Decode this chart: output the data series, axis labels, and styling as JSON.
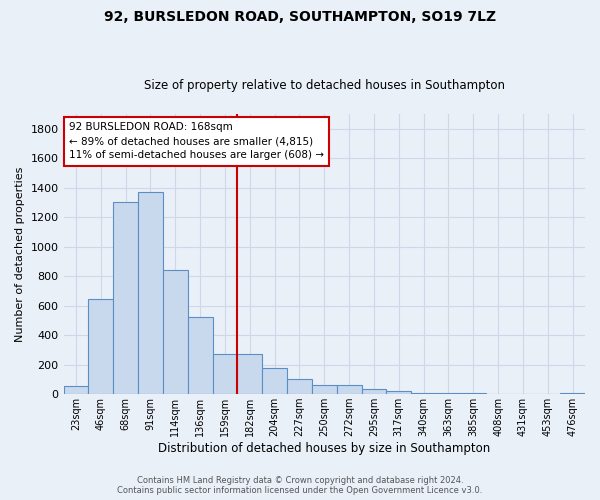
{
  "title": "92, BURSLEDON ROAD, SOUTHAMPTON, SO19 7LZ",
  "subtitle": "Size of property relative to detached houses in Southampton",
  "xlabel": "Distribution of detached houses by size in Southampton",
  "ylabel": "Number of detached properties",
  "footer_line1": "Contains HM Land Registry data © Crown copyright and database right 2024.",
  "footer_line2": "Contains public sector information licensed under the Open Government Licence v3.0.",
  "categories": [
    "23sqm",
    "46sqm",
    "68sqm",
    "91sqm",
    "114sqm",
    "136sqm",
    "159sqm",
    "182sqm",
    "204sqm",
    "227sqm",
    "250sqm",
    "272sqm",
    "295sqm",
    "317sqm",
    "340sqm",
    "363sqm",
    "385sqm",
    "408sqm",
    "431sqm",
    "453sqm",
    "476sqm"
  ],
  "values": [
    55,
    645,
    1300,
    1370,
    845,
    525,
    275,
    275,
    178,
    105,
    63,
    63,
    35,
    20,
    10,
    10,
    8,
    2,
    2,
    2,
    10
  ],
  "bar_color": "#c8d9ee",
  "bar_edge_color": "#5b8fc4",
  "grid_color": "#d0d8e8",
  "background_color": "#eaf0f8",
  "vline_color": "#cc0000",
  "annotation_line1": "92 BURSLEDON ROAD: 168sqm",
  "annotation_line2": "← 89% of detached houses are smaller (4,815)",
  "annotation_line3": "11% of semi-detached houses are larger (608) →",
  "annotation_box_color": "#cc0000",
  "ylim": [
    0,
    1900
  ],
  "yticks": [
    0,
    200,
    400,
    600,
    800,
    1000,
    1200,
    1400,
    1600,
    1800
  ],
  "title_fontsize": 10,
  "subtitle_fontsize": 8.5
}
